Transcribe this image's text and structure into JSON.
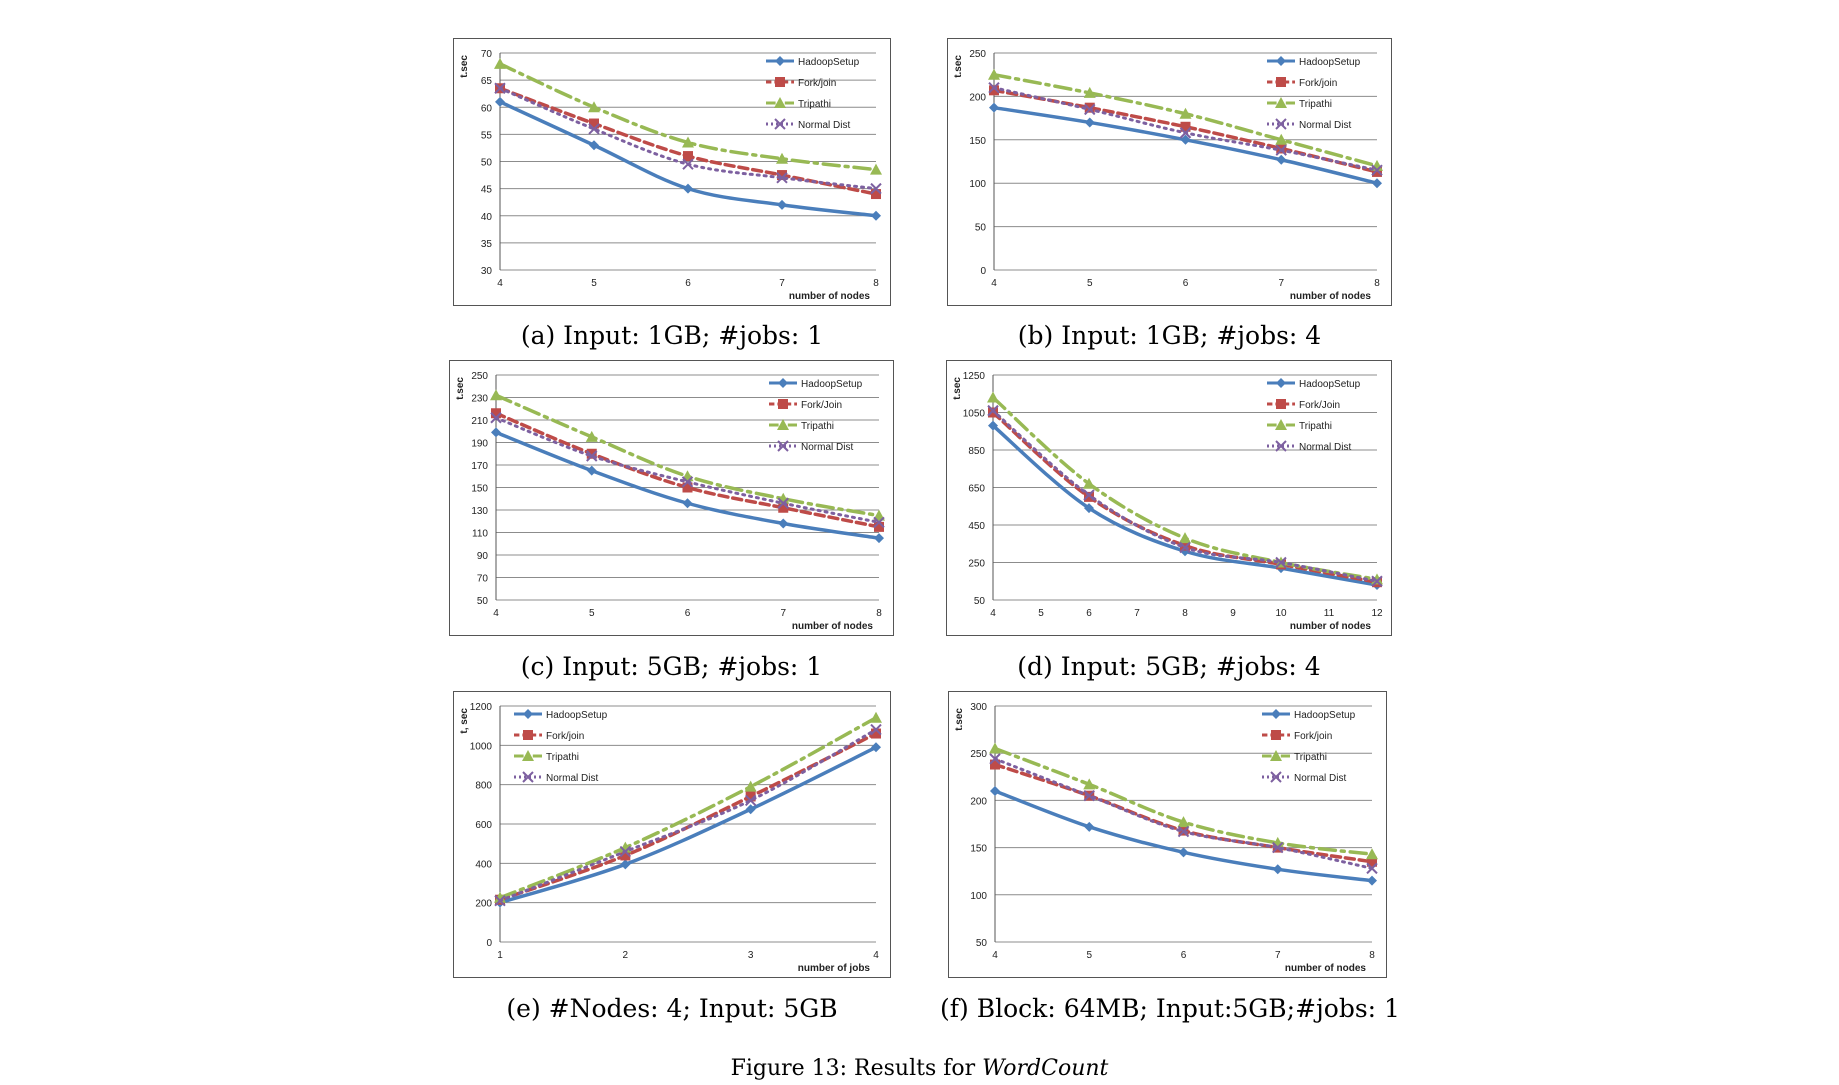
{
  "figure": {
    "caption_prefix": "Figure 13: Results for",
    "caption_emph": "WordCount"
  },
  "chart_data": [
    {
      "id": "a",
      "type": "line",
      "caption": "(a) Input: 1GB; #jobs: 1",
      "ylabel": "t.sec",
      "xlabel": "number of nodes",
      "x": [
        4,
        5,
        6,
        7,
        8
      ],
      "xticks": [
        "4",
        "5",
        "6",
        "7",
        "8"
      ],
      "ylim": [
        30,
        70
      ],
      "yticks": [
        30,
        35,
        40,
        45,
        50,
        55,
        60,
        65,
        70
      ],
      "grid": true,
      "legend": "top-right",
      "series": [
        {
          "name": "HadoopSetup",
          "color": "#4a7ebb",
          "values": [
            61,
            53,
            45,
            42,
            40
          ]
        },
        {
          "name": "Fork/join",
          "color": "#be4b48",
          "values": [
            63.5,
            57,
            51,
            47.5,
            44
          ]
        },
        {
          "name": "Tripathi",
          "color": "#98b954",
          "values": [
            68,
            60,
            53.5,
            50.5,
            48.5
          ]
        },
        {
          "name": "Normal Dist",
          "color": "#7d60a0",
          "values": [
            63.5,
            56,
            49.5,
            47,
            45
          ]
        }
      ]
    },
    {
      "id": "b",
      "type": "line",
      "caption": "(b) Input: 1GB; #jobs: 4",
      "ylabel": "t.sec",
      "xlabel": "number of nodes",
      "x": [
        4,
        5,
        6,
        7,
        8
      ],
      "xticks": [
        "4",
        "5",
        "6",
        "7",
        "8"
      ],
      "ylim": [
        0,
        250
      ],
      "yticks": [
        0,
        50,
        100,
        150,
        200,
        250
      ],
      "grid": true,
      "legend": "top-right",
      "series": [
        {
          "name": "HadoopSetup",
          "color": "#4a7ebb",
          "values": [
            187,
            170,
            150,
            127,
            100
          ]
        },
        {
          "name": "Fork/join",
          "color": "#be4b48",
          "values": [
            207,
            187,
            165,
            140,
            113
          ]
        },
        {
          "name": "Tripathi",
          "color": "#98b954",
          "values": [
            225,
            204,
            180,
            150,
            120
          ]
        },
        {
          "name": "Normal Dist",
          "color": "#7d60a0",
          "values": [
            210,
            185,
            158,
            138,
            115
          ]
        }
      ]
    },
    {
      "id": "c",
      "type": "line",
      "caption": "(c) Input: 5GB; #jobs: 1",
      "ylabel": "t.sec",
      "xlabel": "number of nodes",
      "x": [
        4,
        5,
        6,
        7,
        8
      ],
      "xticks": [
        "4",
        "5",
        "6",
        "7",
        "8"
      ],
      "ylim": [
        50,
        250
      ],
      "yticks": [
        50,
        70,
        90,
        110,
        130,
        150,
        170,
        190,
        210,
        230,
        250
      ],
      "grid": true,
      "legend": "top-right",
      "series": [
        {
          "name": "HadoopSetup",
          "color": "#4a7ebb",
          "values": [
            199,
            165,
            136,
            118,
            105
          ]
        },
        {
          "name": "Fork/Join",
          "color": "#be4b48",
          "values": [
            216,
            180,
            150,
            132,
            115
          ]
        },
        {
          "name": "Tripathi",
          "color": "#98b954",
          "values": [
            232,
            195,
            160,
            140,
            125
          ]
        },
        {
          "name": "Normal Dist",
          "color": "#7d60a0",
          "values": [
            212,
            178,
            155,
            136,
            119
          ]
        }
      ]
    },
    {
      "id": "d",
      "type": "line",
      "caption": "(d) Input: 5GB; #jobs: 4",
      "ylabel": "t.sec",
      "xlabel": "number of nodes",
      "x": [
        4,
        5,
        6,
        7,
        8,
        9,
        10,
        11,
        12
      ],
      "xticks": [
        "4",
        "5",
        "6",
        "7",
        "8",
        "9",
        "10",
        "11",
        "12"
      ],
      "ylim": [
        50,
        1250
      ],
      "yticks": [
        50,
        250,
        450,
        650,
        850,
        1050,
        1250
      ],
      "grid": true,
      "legend": "top-right",
      "series": [
        {
          "name": "HadoopSetup",
          "color": "#4a7ebb",
          "values": [
            980,
            null,
            540,
            null,
            310,
            null,
            220,
            null,
            130
          ]
        },
        {
          "name": "Fork/Join",
          "color": "#be4b48",
          "values": [
            1050,
            null,
            600,
            null,
            340,
            null,
            240,
            null,
            145
          ]
        },
        {
          "name": "Tripathi",
          "color": "#98b954",
          "values": [
            1130,
            null,
            670,
            null,
            380,
            null,
            250,
            null,
            160
          ]
        },
        {
          "name": "Normal Dist",
          "color": "#7d60a0",
          "values": [
            1060,
            null,
            610,
            null,
            330,
            null,
            250,
            null,
            150
          ]
        }
      ]
    },
    {
      "id": "e",
      "type": "line",
      "caption": "(e) #Nodes: 4; Input: 5GB",
      "ylabel": "t, sec",
      "xlabel": "number of jobs",
      "x": [
        1,
        2,
        3,
        4
      ],
      "xticks": [
        "1",
        "2",
        "3",
        "4"
      ],
      "ylim": [
        0,
        1200
      ],
      "yticks": [
        0,
        200,
        400,
        600,
        800,
        1000,
        1200
      ],
      "grid": true,
      "legend": "top-left",
      "series": [
        {
          "name": "HadoopSetup",
          "color": "#4a7ebb",
          "values": [
            200,
            395,
            675,
            990
          ]
        },
        {
          "name": "Fork/join",
          "color": "#be4b48",
          "values": [
            215,
            440,
            740,
            1060
          ]
        },
        {
          "name": "Tripathi",
          "color": "#98b954",
          "values": [
            225,
            480,
            790,
            1140
          ]
        },
        {
          "name": "Normal Dist",
          "color": "#7d60a0",
          "values": [
            210,
            460,
            720,
            1080
          ]
        }
      ]
    },
    {
      "id": "f",
      "type": "line",
      "caption": "(f) Block: 64MB; Input:5GB;#jobs: 1",
      "ylabel": "t.sec",
      "xlabel": "number of nodes",
      "x": [
        4,
        5,
        6,
        7,
        8
      ],
      "xticks": [
        "4",
        "5",
        "6",
        "7",
        "8"
      ],
      "ylim": [
        50,
        300
      ],
      "yticks": [
        50,
        100,
        150,
        200,
        250,
        300
      ],
      "grid": true,
      "legend": "top-right",
      "series": [
        {
          "name": "HadoopSetup",
          "color": "#4a7ebb",
          "values": [
            210,
            172,
            145,
            127,
            115
          ]
        },
        {
          "name": "Fork/join",
          "color": "#be4b48",
          "values": [
            238,
            205,
            168,
            150,
            135
          ]
        },
        {
          "name": "Tripathi",
          "color": "#98b954",
          "values": [
            255,
            217,
            177,
            155,
            143
          ]
        },
        {
          "name": "Normal Dist",
          "color": "#7d60a0",
          "values": [
            244,
            205,
            167,
            150,
            128
          ]
        }
      ]
    }
  ]
}
